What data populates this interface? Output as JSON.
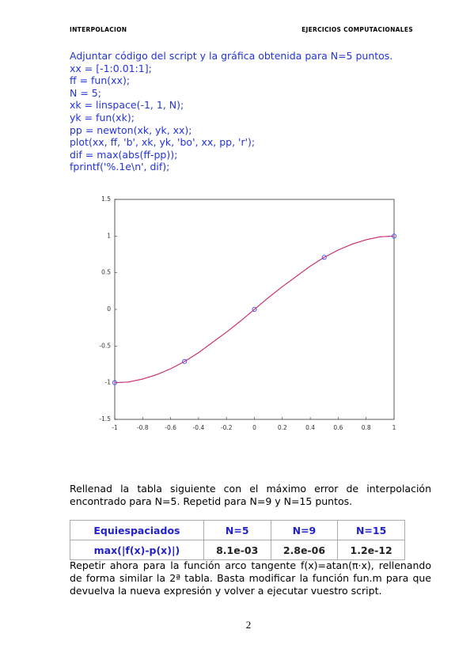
{
  "header": {
    "left": "INTERPOLACION",
    "right": "EJERCICIOS COMPUTACIONALES"
  },
  "intro": "Adjuntar código del script y la gráfica obtenida para N=5 puntos.",
  "code": [
    "xx = [-1:0.01:1];",
    "ff = fun(xx);",
    "N = 5;",
    "xk = linspace(-1, 1, N);",
    "yk = fun(xk);",
    "pp = newton(xk, yk, xx);",
    "plot(xx, ff, 'b', xk, yk, 'bo', xx, pp, 'r');",
    "dif = max(abs(ff-pp));",
    "fprintf('%.1e\\n', dif);"
  ],
  "chart_data": {
    "type": "line",
    "x": [
      -1,
      -0.9,
      -0.8,
      -0.7,
      -0.6,
      -0.5,
      -0.4,
      -0.3,
      -0.2,
      -0.1,
      0,
      0.1,
      0.2,
      0.3,
      0.4,
      0.5,
      0.6,
      0.7,
      0.8,
      0.9,
      1
    ],
    "series": [
      {
        "color": "#3333ff",
        "values": [
          -1,
          -0.99,
          -0.95,
          -0.89,
          -0.81,
          -0.71,
          -0.59,
          -0.45,
          -0.31,
          -0.16,
          0,
          0.16,
          0.31,
          0.45,
          0.59,
          0.71,
          0.81,
          0.89,
          0.95,
          0.99,
          1
        ]
      },
      {
        "color": "#e0305a",
        "values": [
          -1,
          -0.99,
          -0.95,
          -0.89,
          -0.81,
          -0.71,
          -0.59,
          -0.45,
          -0.31,
          -0.16,
          0,
          0.16,
          0.31,
          0.45,
          0.59,
          0.71,
          0.81,
          0.89,
          0.95,
          0.99,
          1
        ]
      }
    ],
    "markers": {
      "color": "#3333ff",
      "x": [
        -1,
        -0.5,
        0,
        0.5,
        1
      ],
      "values": [
        -1,
        -0.71,
        0,
        0.71,
        1
      ]
    },
    "xlim": [
      -1,
      1
    ],
    "xticks": [
      -1,
      -0.8,
      -0.6,
      -0.4,
      -0.2,
      0,
      0.2,
      0.4,
      0.6,
      0.8,
      1
    ],
    "ylim": [
      -1.5,
      1.5
    ],
    "yticks": [
      -1.5,
      -1,
      -0.5,
      0,
      0.5,
      1,
      1.5
    ]
  },
  "paragraph1": "Rellenad la tabla siguiente con el máximo error de interpolación encontrado para N=5. Repetid para N=9 y N=15 puntos.",
  "table": {
    "header": [
      "Equiespaciados",
      "N=5",
      "N=9",
      "N=15"
    ],
    "rows": [
      [
        "max(|f(x)-p(x)|)",
        "8.1e-03",
        "2.8e-06",
        "1.2e-12"
      ]
    ]
  },
  "paragraph2": "Repetir ahora para la función arco tangente f(x)=atan(π·x), rellenando de forma similar la 2ª tabla. Basta modificar la función fun.m para que devuelva la nueva expresión y volver a ejecutar vuestro script.",
  "page_number": "2"
}
